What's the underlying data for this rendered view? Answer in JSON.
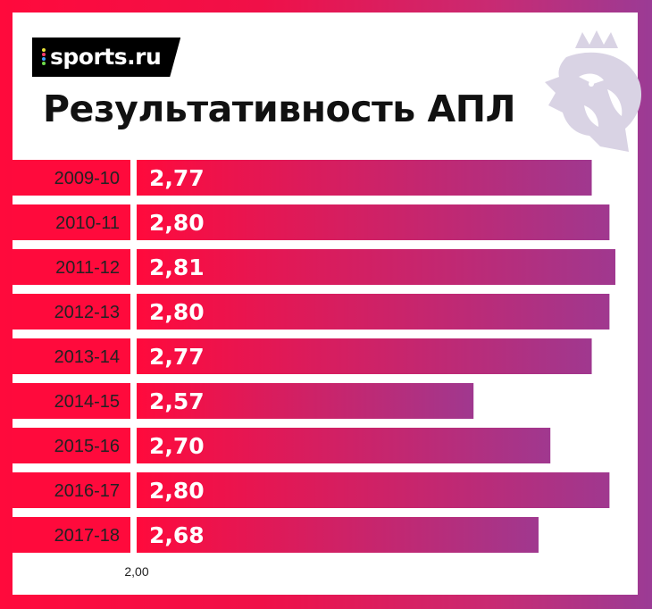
{
  "brand": {
    "logo_text": "sports.ru"
  },
  "colors": {
    "bar_start": "#ff0a3c",
    "bar_end": "#a0388f",
    "frame_gradient": [
      "#ff0a3c",
      "#9b3b95"
    ],
    "emblem": "#d9d3e4",
    "text_dark": "#111111"
  },
  "chart_data": {
    "type": "bar",
    "orientation": "horizontal",
    "title": "Результативность АПЛ",
    "categories": [
      "2009-10",
      "2010-11",
      "2011-12",
      "2012-13",
      "2013-14",
      "2014-15",
      "2015-16",
      "2016-17",
      "2017-18"
    ],
    "values": [
      2.77,
      2.8,
      2.81,
      2.8,
      2.77,
      2.57,
      2.7,
      2.8,
      2.68
    ],
    "value_labels": [
      "2,77",
      "2,80",
      "2,81",
      "2,80",
      "2,77",
      "2,57",
      "2,70",
      "2,80",
      "2,68"
    ],
    "axis_start_label": "2,00",
    "xlim": [
      2.0,
      2.81
    ],
    "xlabel": "",
    "ylabel": "",
    "grid": false,
    "legend": "none"
  }
}
